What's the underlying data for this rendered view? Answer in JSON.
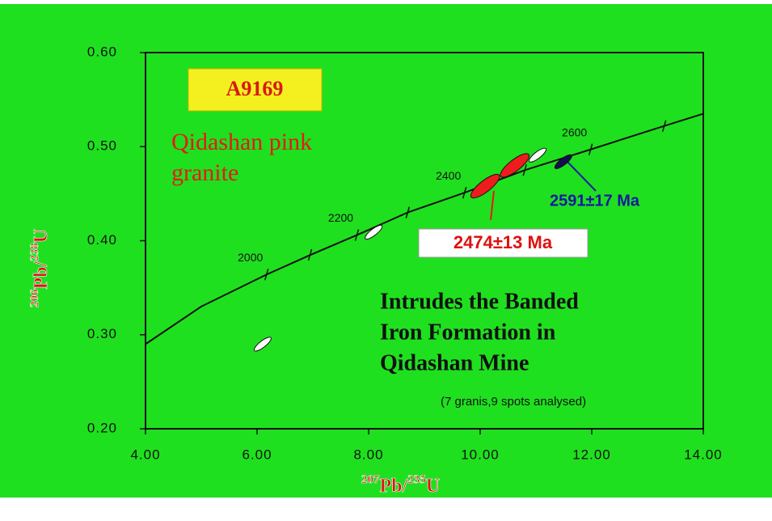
{
  "chart_data": {
    "type": "line",
    "title": "A9169",
    "subtitle": [
      "Qidashan pink",
      "granite"
    ],
    "x_label": [
      "207",
      "Pb/",
      "235",
      "U"
    ],
    "y_label": [
      "206",
      "Pb/",
      "238",
      "U"
    ],
    "xlim": [
      4,
      14
    ],
    "ylim": [
      0.2,
      0.6
    ],
    "xticks": [
      {
        "value": 4,
        "label": "4.00"
      },
      {
        "value": 6,
        "label": "6.00"
      },
      {
        "value": 8,
        "label": "8.00"
      },
      {
        "value": 10,
        "label": "10.00"
      },
      {
        "value": 12,
        "label": "12.00"
      },
      {
        "value": 14,
        "label": "14.00"
      }
    ],
    "yticks": [
      {
        "value": 0.2,
        "label": "0.20"
      },
      {
        "value": 0.3,
        "label": "0.30"
      },
      {
        "value": 0.4,
        "label": "0.40"
      },
      {
        "value": 0.5,
        "label": "0.50"
      },
      {
        "value": 0.6,
        "label": "0.60"
      }
    ],
    "series": [
      {
        "color": "#111111",
        "x": [
          4.0,
          5.0,
          6.17,
          7.0,
          7.79,
          8.7,
          9.72,
          10.8,
          11.98,
          13.3,
          14.0
        ],
        "values": [
          0.29,
          0.33,
          0.364,
          0.386,
          0.406,
          0.43,
          0.451,
          0.475,
          0.497,
          0.522,
          0.535
        ]
      }
    ],
    "age_marks": {
      "x": [
        6.17,
        6.95,
        7.79,
        8.7,
        9.72,
        10.8,
        11.98,
        13.3
      ],
      "values": [
        0.364,
        0.385,
        0.406,
        0.43,
        0.451,
        0.475,
        0.497,
        0.522
      ],
      "labels": [
        "2000",
        null,
        "2200",
        null,
        "2400",
        null,
        "2600",
        null
      ]
    },
    "spot_groups": [
      {
        "color": "#ffffff",
        "x": [
          6.1,
          8.09,
          11.03
        ],
        "values": [
          0.29,
          0.409,
          0.491
        ]
      },
      {
        "color": "#ee1c1c",
        "x": [
          10.09,
          10.62
        ],
        "values": [
          0.458,
          0.48
        ]
      },
      {
        "color": "#101050",
        "x": [
          11.49
        ],
        "values": [
          0.484
        ]
      }
    ],
    "annotations": {
      "age_red": "2474±13 Ma",
      "age_blue": "2591±17 Ma",
      "note": [
        "Intrudes the Banded",
        "Iron Formation in",
        "Qidashan Mine"
      ],
      "footnote": "(7 granis,9 spots analysed)"
    }
  }
}
